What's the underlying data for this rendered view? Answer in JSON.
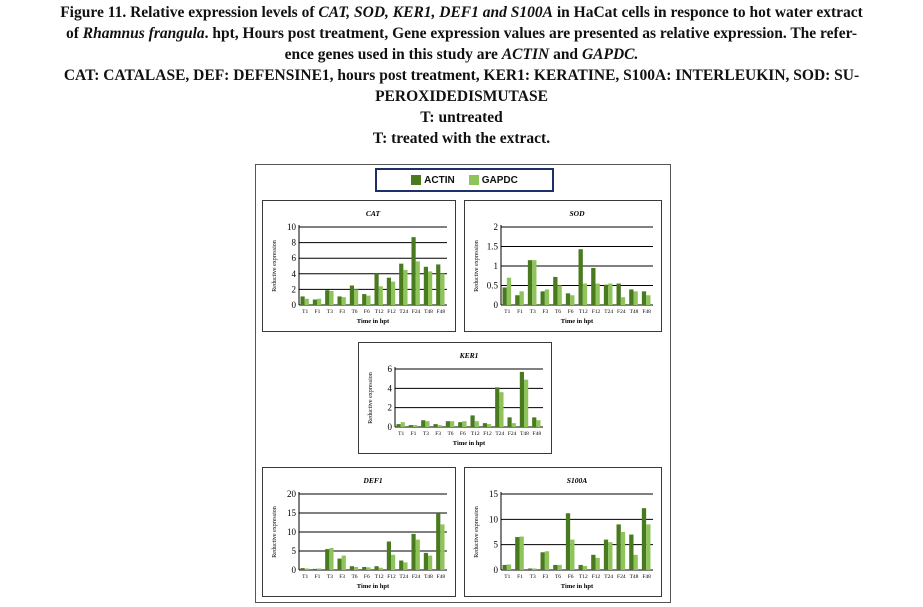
{
  "caption": {
    "line1_a": "Figure 11. Relative expression levels of ",
    "line1_genes": "CAT, SOD, KER1, DEF1 and S100A",
    "line1_b": " in HaCat cells in responce to hot water extract",
    "line2_a": "of ",
    "line2_species": "Rhamnus frangula",
    "line2_b": ". hpt, Hours post treatment, Gene expression values are presented as relative expression. The refer-",
    "line3_a": "ence genes used in this study are ",
    "line3_g1": "ACTIN",
    "line3_and": " and ",
    "line3_g2": "GAPDC.",
    "line4": "CAT: CATALASE, DEF: DEFENSINE1, hours post treatment, KER1: KERATINE, S100A: INTERLEUKIN, SOD: SU-",
    "line5": "PEROXIDEDISMUTASE",
    "line6": "T: untreated",
    "line7": "T: treated with the extract."
  },
  "legend": {
    "series1": "ACTIN",
    "series2": "GAPDC"
  },
  "colors": {
    "actin": "#4a7a1f",
    "gapdc": "#8fc45a",
    "grid": "#000000"
  },
  "chart_data": [
    {
      "type": "bar",
      "title": "CAT",
      "xlabel": "Time in hpt",
      "ylabel": "Reductive expression",
      "ylim": [
        0,
        10
      ],
      "yticks": [
        0,
        2,
        4,
        6,
        8,
        10
      ],
      "grid": true,
      "categories": [
        "T1",
        "F1",
        "T3",
        "F3",
        "T6",
        "F6",
        "T12",
        "F12",
        "T24",
        "F24",
        "T48",
        "F48"
      ],
      "series": [
        {
          "name": "ACTIN",
          "values": [
            1.1,
            0.7,
            1.9,
            1.1,
            2.5,
            1.4,
            4.0,
            3.5,
            5.3,
            8.7,
            4.9,
            5.2
          ]
        },
        {
          "name": "GAPDC",
          "values": [
            0.8,
            0.8,
            1.8,
            1.0,
            2.0,
            1.2,
            2.4,
            3.0,
            4.5,
            5.6,
            4.3,
            4.0
          ]
        }
      ]
    },
    {
      "type": "bar",
      "title": "SOD",
      "xlabel": "Time in hpt",
      "ylabel": "Reductive expression",
      "ylim": [
        0,
        2
      ],
      "yticks": [
        0,
        0.5,
        1,
        1.5,
        2
      ],
      "grid": true,
      "categories": [
        "T1",
        "F1",
        "T3",
        "F3",
        "T6",
        "F6",
        "T12",
        "F12",
        "T24",
        "F24",
        "T48",
        "F48"
      ],
      "series": [
        {
          "name": "ACTIN",
          "values": [
            0.45,
            0.25,
            1.15,
            0.35,
            0.72,
            0.3,
            1.43,
            0.95,
            0.52,
            0.55,
            0.4,
            0.35
          ]
        },
        {
          "name": "GAPDC",
          "values": [
            0.7,
            0.35,
            1.15,
            0.4,
            0.5,
            0.25,
            0.55,
            0.55,
            0.55,
            0.2,
            0.35,
            0.25
          ]
        }
      ]
    },
    {
      "type": "bar",
      "title": "KER1",
      "xlabel": "Time in hpt",
      "ylabel": "Reductive expression",
      "ylim": [
        0,
        6
      ],
      "yticks": [
        0,
        2,
        4,
        6
      ],
      "grid": true,
      "categories": [
        "T1",
        "F1",
        "T3",
        "F3",
        "T6",
        "F6",
        "T12",
        "F12",
        "T24",
        "F24",
        "T48",
        "F48"
      ],
      "series": [
        {
          "name": "ACTIN",
          "values": [
            0.3,
            0.2,
            0.7,
            0.3,
            0.6,
            0.5,
            1.2,
            0.4,
            4.1,
            1.0,
            5.7,
            1.0
          ]
        },
        {
          "name": "GAPDC",
          "values": [
            0.5,
            0.2,
            0.6,
            0.2,
            0.6,
            0.6,
            0.6,
            0.3,
            3.6,
            0.4,
            4.9,
            0.7
          ]
        }
      ]
    },
    {
      "type": "bar",
      "title": "DEF1",
      "xlabel": "Time in hpt",
      "ylabel": "Reductive expression",
      "ylim": [
        0,
        20
      ],
      "yticks": [
        0,
        5,
        10,
        15,
        20
      ],
      "grid": true,
      "categories": [
        "T1",
        "F1",
        "T3",
        "F3",
        "T6",
        "F6",
        "T12",
        "F12",
        "T24",
        "F24",
        "T48",
        "F48"
      ],
      "series": [
        {
          "name": "ACTIN",
          "values": [
            0.5,
            0.3,
            5.5,
            3.0,
            1.0,
            0.8,
            1.0,
            7.5,
            2.5,
            9.5,
            4.5,
            14.8
          ]
        },
        {
          "name": "GAPDC",
          "values": [
            0.4,
            0.4,
            5.8,
            3.8,
            0.8,
            0.7,
            0.6,
            4.0,
            2.0,
            8.0,
            3.8,
            12.0
          ]
        }
      ]
    },
    {
      "type": "bar",
      "title": "S100A",
      "xlabel": "Time in hpt",
      "ylabel": "Reductive expression",
      "ylim": [
        0,
        15
      ],
      "yticks": [
        0,
        5,
        10,
        15
      ],
      "grid": true,
      "categories": [
        "T1",
        "F1",
        "T3",
        "F3",
        "T6",
        "F6",
        "T12",
        "F12",
        "T24",
        "F24",
        "T48",
        "F48"
      ],
      "series": [
        {
          "name": "ACTIN",
          "values": [
            1.0,
            6.5,
            0.3,
            3.5,
            1.0,
            11.2,
            1.0,
            3.0,
            6.0,
            9.0,
            7.0,
            12.2
          ]
        },
        {
          "name": "GAPDC",
          "values": [
            1.1,
            6.6,
            0.3,
            3.7,
            1.0,
            6.0,
            0.8,
            2.4,
            5.5,
            7.5,
            3.0,
            9.0
          ]
        }
      ]
    }
  ]
}
